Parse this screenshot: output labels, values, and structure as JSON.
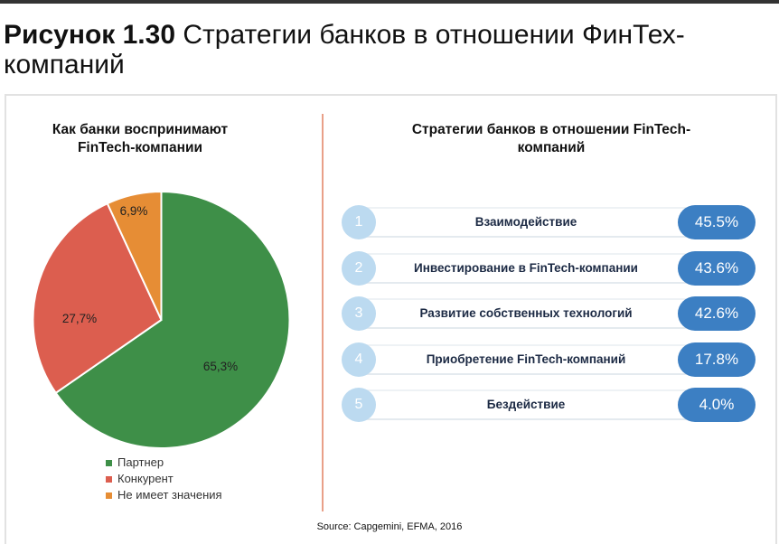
{
  "figure": {
    "label": "Рисунок 1.30",
    "title": "Стратегии банков в отношении ФинТех-компаний"
  },
  "chart_data": {
    "type": "pie",
    "title": "Как банки воспринимают FinTech-компании",
    "categories": [
      "Партнер",
      "Конкурент",
      "Не имеет значения"
    ],
    "values": [
      65.3,
      27.7,
      6.9
    ],
    "data_labels": [
      "65,3%",
      "27,7%",
      "6,9%"
    ],
    "colors": [
      "#3e8f48",
      "#dc5e4f",
      "#e68d35"
    ],
    "legend_position": "bottom"
  },
  "strategies": {
    "title": "Стратегии банков в отношении FinTech-компаний",
    "items": [
      {
        "n": "1",
        "label": "Взаимодействие",
        "value": "45.5%"
      },
      {
        "n": "2",
        "label": "Инвестирование в FinTech-компании",
        "value": "43.6%"
      },
      {
        "n": "3",
        "label": "Развитие собственных технологий",
        "value": "42.6%"
      },
      {
        "n": "4",
        "label": "Приобретение FinTech-компаний",
        "value": "17.8%"
      },
      {
        "n": "5",
        "label": "Бездействие",
        "value": "4.0%"
      }
    ]
  },
  "source": "Source: Capgemini, EFMA, 2016"
}
